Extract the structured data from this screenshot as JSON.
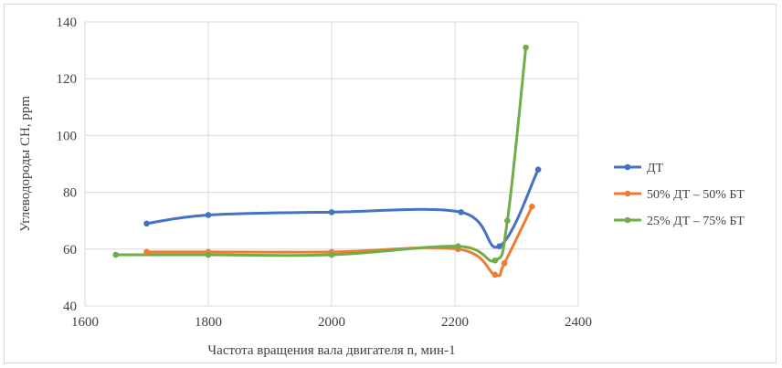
{
  "chart_data": {
    "type": "line",
    "title": "",
    "xlabel": "Частота вращения вала двигателя n, мин-1",
    "ylabel": "Углеводороды СН, ppm",
    "xlim": [
      1600,
      2400
    ],
    "ylim": [
      40,
      140
    ],
    "xticks": [
      1600,
      1800,
      2000,
      2200,
      2400
    ],
    "yticks": [
      40,
      60,
      80,
      100,
      120,
      140
    ],
    "grid": true,
    "legend_position": "right",
    "series": [
      {
        "name": "ДТ",
        "color": "#4472c4",
        "x": [
          1700,
          1800,
          2000,
          2210,
          2272,
          2335
        ],
        "y": [
          69,
          72,
          73,
          73,
          61,
          88
        ]
      },
      {
        "name": "50% ДТ – 50% БТ",
        "color": "#ed7d31",
        "x": [
          1700,
          1800,
          2000,
          2205,
          2265,
          2280,
          2325
        ],
        "y": [
          59,
          59,
          59,
          60,
          51,
          55,
          75
        ]
      },
      {
        "name": "25% ДТ – 75% БТ",
        "color": "#70ad47",
        "x": [
          1650,
          1800,
          2000,
          2205,
          2265,
          2285,
          2315
        ],
        "y": [
          58,
          58,
          58,
          61,
          56,
          70,
          131
        ]
      }
    ]
  }
}
